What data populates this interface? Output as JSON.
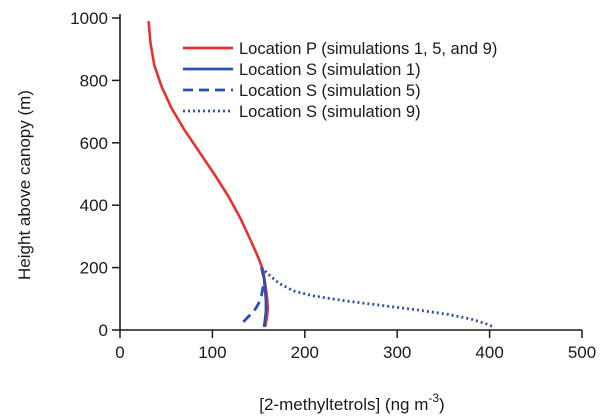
{
  "chart_data": {
    "type": "line",
    "xlabel": "[2-methyltetrols] (ng m",
    "xlabel_sup": "-3",
    "xlabel_tail": ")",
    "ylabel": "Height above canopy (m)",
    "xlim": [
      0,
      500
    ],
    "ylim": [
      0,
      1000
    ],
    "xticks": [
      0,
      100,
      200,
      300,
      400,
      500
    ],
    "yticks": [
      0,
      200,
      400,
      600,
      800,
      1000
    ],
    "grid": false,
    "legend_position": "top-right",
    "series": [
      {
        "name": "Location P (simulations 1, 5, and 9)",
        "color": "#e8312f",
        "dash": "solid",
        "points": [
          [
            31,
            990
          ],
          [
            33,
            920
          ],
          [
            37,
            850
          ],
          [
            45,
            780
          ],
          [
            56,
            710
          ],
          [
            70,
            640
          ],
          [
            86,
            570
          ],
          [
            102,
            500
          ],
          [
            117,
            430
          ],
          [
            130,
            360
          ],
          [
            141,
            290
          ],
          [
            150,
            230
          ],
          [
            155,
            190
          ],
          [
            157,
            150
          ],
          [
            159,
            110
          ],
          [
            160,
            70
          ],
          [
            159,
            40
          ],
          [
            157,
            10
          ]
        ]
      },
      {
        "name": "Location S (simulation 1)",
        "color": "#2f4fb0",
        "dash": "solid",
        "points": [
          [
            153,
            200
          ],
          [
            156,
            165
          ],
          [
            157,
            130
          ],
          [
            158,
            95
          ],
          [
            158,
            60
          ],
          [
            157,
            35
          ],
          [
            156,
            10
          ]
        ]
      },
      {
        "name": "Location S (simulation 5)",
        "color": "#2f4fb0",
        "dash": "dashed",
        "points": [
          [
            155,
            140
          ],
          [
            153,
            110
          ],
          [
            150,
            85
          ],
          [
            145,
            60
          ],
          [
            138,
            40
          ],
          [
            130,
            15
          ]
        ]
      },
      {
        "name": "Location S (simulation 9)",
        "color": "#2f4fb0",
        "dash": "dotted",
        "points": [
          [
            153,
            200
          ],
          [
            162,
            175
          ],
          [
            172,
            150
          ],
          [
            188,
            125
          ],
          [
            208,
            110
          ],
          [
            240,
            95
          ],
          [
            280,
            80
          ],
          [
            320,
            65
          ],
          [
            355,
            50
          ],
          [
            380,
            35
          ],
          [
            396,
            20
          ],
          [
            404,
            10
          ]
        ]
      }
    ]
  }
}
